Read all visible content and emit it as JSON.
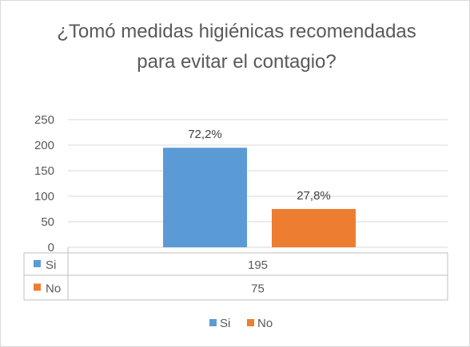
{
  "chart_data": {
    "type": "bar",
    "title": "¿Tomó medidas higiénicas recomendadas para evitar el contagio?",
    "categories": [
      "Si",
      "No"
    ],
    "values": [
      195,
      75
    ],
    "data_labels": [
      "72,2%",
      "27,8%"
    ],
    "colors": [
      "#5b9bd5",
      "#ed7d31"
    ],
    "y_ticks": [
      "0",
      "50",
      "100",
      "150",
      "200",
      "250"
    ],
    "ylim": [
      0,
      250
    ],
    "grid": true,
    "legend": "bottom",
    "data_table": true,
    "legend_labels": [
      "Si",
      "No"
    ]
  }
}
